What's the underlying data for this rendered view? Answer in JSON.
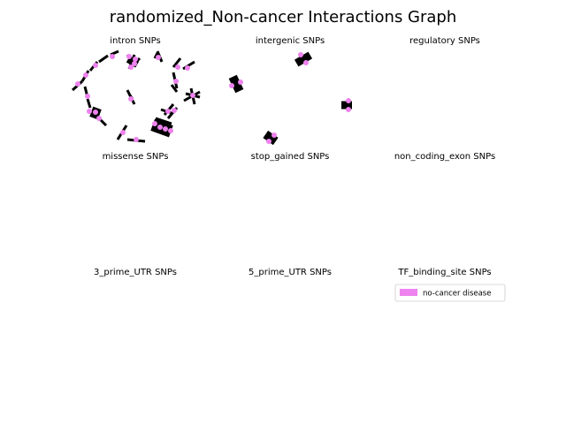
{
  "title": "randomized_Non-cancer Interactions Graph",
  "colors": {
    "node": "#ee82ee",
    "edge": "#000000",
    "legend_patch": "#ee82ee"
  },
  "legend": {
    "label": "no-cancer disease",
    "placement": "lower-right panel, top"
  },
  "panels": [
    {
      "title": "intron SNPs",
      "has_graph": true
    },
    {
      "title": "intergenic SNPs",
      "has_graph": true
    },
    {
      "title": "regulatory SNPs",
      "has_graph": true
    },
    {
      "title": "missense SNPs",
      "has_graph": false
    },
    {
      "title": "stop_gained SNPs",
      "has_graph": false
    },
    {
      "title": "non_coding_exon SNPs",
      "has_graph": false
    },
    {
      "title": "3_prime_UTR SNPs",
      "has_graph": false
    },
    {
      "title": "5_prime_UTR SNPs",
      "has_graph": false
    },
    {
      "title": "TF_binding_site SNPs",
      "has_graph": false
    }
  ],
  "chart_data": {
    "type": "network",
    "title": "randomized_Non-cancer Interactions Graph",
    "series": [
      {
        "name": "no-cancer disease",
        "color": "#ee82ee"
      }
    ],
    "layout": "3x3 grid of network panels"
  }
}
